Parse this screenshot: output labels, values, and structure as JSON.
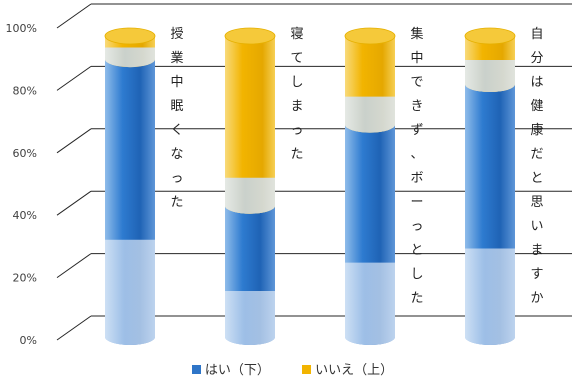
{
  "chart_data": {
    "type": "bar",
    "stacked": true,
    "categories": [
      "授業中眠くなった",
      "寝てしまった",
      "集中できず、ボーっとした",
      "自分は健康だと思いますか"
    ],
    "series": [
      {
        "name": "はい（下）",
        "values": [
          91,
          44,
          70,
          83
        ]
      },
      {
        "name": "いいえ（上）",
        "values": [
          9,
          56,
          30,
          17
        ]
      }
    ],
    "ylim": [
      0,
      100
    ],
    "yticks": [
      "0%",
      "20%",
      "40%",
      "60%",
      "80%",
      "100%"
    ],
    "legend_position": "bottom",
    "colors": {
      "yes": "#2E75C8",
      "no": "#F2B400",
      "grid": "#262626"
    }
  },
  "legend": {
    "yes_label": "はい（下）",
    "no_label": "いいえ（上）"
  }
}
